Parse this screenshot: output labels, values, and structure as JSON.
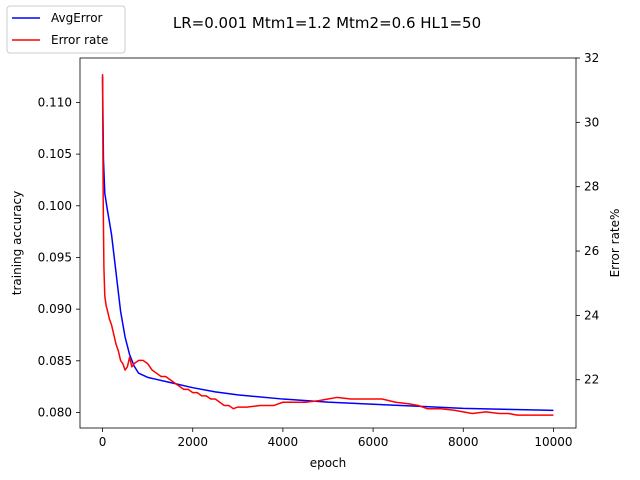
{
  "chart_data": {
    "type": "line",
    "title": "LR=0.001 Mtm1=1.2 Mtm2=0.6 HL1=50",
    "xlabel": "epoch",
    "ylabel_left": "training accuracy",
    "ylabel_right": "Error rate%",
    "xlim": [
      -500,
      10500
    ],
    "ylim_left": [
      0.0785,
      0.1143
    ],
    "ylim_right": [
      20.5,
      32.0
    ],
    "x_ticks": [
      0,
      2000,
      4000,
      6000,
      8000,
      10000
    ],
    "x_tick_labels": [
      "0",
      "2000",
      "4000",
      "6000",
      "8000",
      "10000"
    ],
    "y_left_ticks": [
      0.08,
      0.085,
      0.09,
      0.095,
      0.1,
      0.105,
      0.11
    ],
    "y_left_tick_labels": [
      "0.080",
      "0.085",
      "0.090",
      "0.095",
      "0.100",
      "0.105",
      "0.110"
    ],
    "y_right_ticks": [
      22,
      24,
      26,
      28,
      30,
      32
    ],
    "y_right_tick_labels": [
      "22",
      "24",
      "26",
      "28",
      "30",
      "32"
    ],
    "grid": false,
    "legend_position": "top-left, outside plot",
    "series": [
      {
        "name": "AvgError",
        "axis": "left",
        "color": "#0000ff",
        "x": [
          0,
          20,
          50,
          100,
          150,
          200,
          300,
          400,
          500,
          600,
          700,
          800,
          1000,
          1200,
          1500,
          2000,
          2500,
          3000,
          4000,
          5000,
          6000,
          7000,
          8000,
          9000,
          10000
        ],
        "y": [
          0.1125,
          0.1045,
          0.1012,
          0.0998,
          0.0985,
          0.0972,
          0.0935,
          0.0898,
          0.0873,
          0.0856,
          0.0845,
          0.0838,
          0.0834,
          0.0832,
          0.0829,
          0.0824,
          0.082,
          0.0817,
          0.0813,
          0.081,
          0.0808,
          0.0806,
          0.0804,
          0.0803,
          0.0802
        ]
      },
      {
        "name": "Error rate",
        "axis": "right",
        "color": "#ff0000",
        "x": [
          0,
          5,
          15,
          30,
          50,
          80,
          100,
          150,
          200,
          250,
          300,
          350,
          400,
          450,
          500,
          550,
          600,
          650,
          700,
          800,
          900,
          1000,
          1100,
          1200,
          1300,
          1400,
          1500,
          1600,
          1700,
          1800,
          1900,
          2000,
          2100,
          2200,
          2300,
          2400,
          2500,
          2600,
          2700,
          2800,
          2900,
          3000,
          3200,
          3500,
          3800,
          4000,
          4200,
          4500,
          4800,
          5000,
          5200,
          5500,
          5800,
          6000,
          6200,
          6500,
          6800,
          7000,
          7200,
          7500,
          7800,
          8000,
          8200,
          8500,
          8800,
          9000,
          9200,
          9500,
          9800,
          10000
        ],
        "y": [
          31.5,
          30.0,
          27.5,
          25.5,
          24.6,
          24.3,
          24.2,
          23.9,
          23.7,
          23.4,
          23.1,
          22.9,
          22.6,
          22.5,
          22.3,
          22.4,
          22.7,
          22.4,
          22.5,
          22.6,
          22.6,
          22.5,
          22.3,
          22.2,
          22.1,
          22.1,
          22.0,
          21.9,
          21.8,
          21.7,
          21.7,
          21.6,
          21.6,
          21.5,
          21.5,
          21.4,
          21.4,
          21.3,
          21.2,
          21.2,
          21.1,
          21.15,
          21.15,
          21.2,
          21.2,
          21.3,
          21.3,
          21.3,
          21.35,
          21.4,
          21.45,
          21.4,
          21.4,
          21.4,
          21.4,
          21.3,
          21.25,
          21.2,
          21.1,
          21.1,
          21.05,
          21.0,
          20.95,
          21.0,
          20.95,
          20.95,
          20.9,
          20.9,
          20.9,
          20.9
        ]
      }
    ]
  }
}
